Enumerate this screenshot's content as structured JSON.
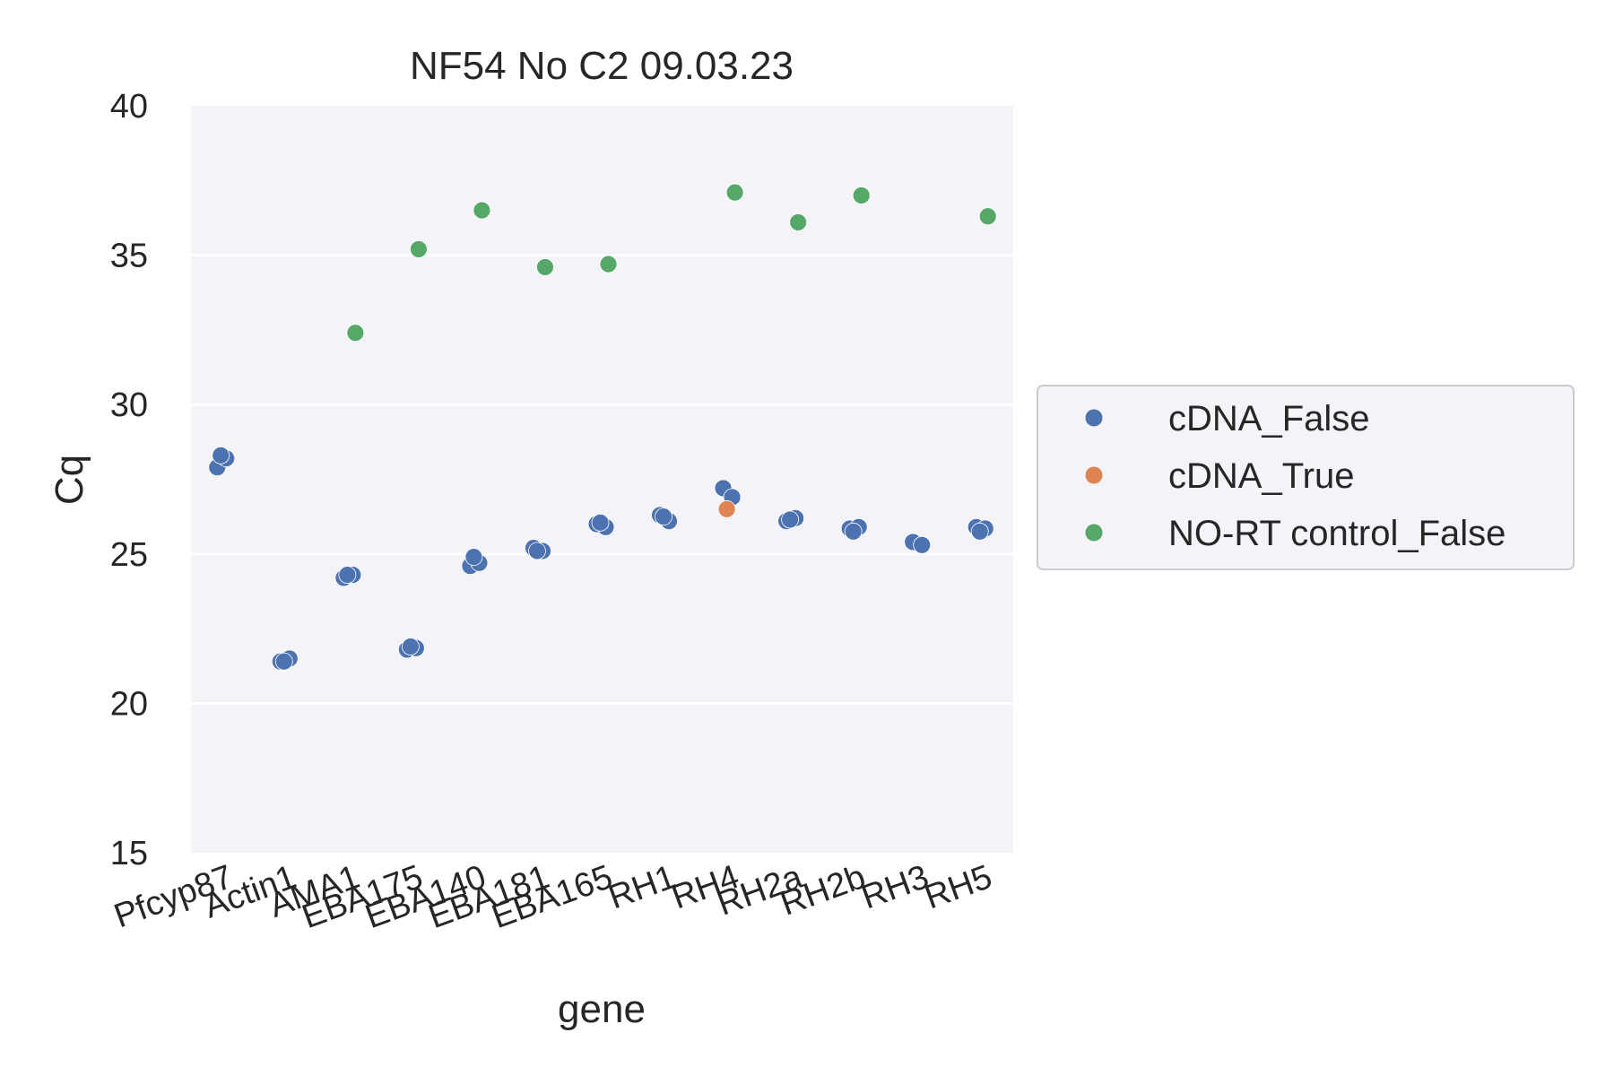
{
  "chart_data": {
    "type": "scatter",
    "title": "NF54 No C2 09.03.23",
    "xlabel": "gene",
    "ylabel": "Cq",
    "ylim": [
      15,
      40
    ],
    "yticks": [
      "15",
      "20",
      "25",
      "30",
      "35",
      "40"
    ],
    "categories": [
      "Pfcyp87",
      "Actin1",
      "AMA1",
      "EBA175",
      "EBA140",
      "EBA181",
      "EBA165",
      "RH1",
      "RH4",
      "RH2a",
      "RH2b",
      "RH3",
      "RH5"
    ],
    "grid": true,
    "legend_position": "right",
    "series": [
      {
        "name": "cDNA_False",
        "color": "#4c72b0",
        "points": [
          {
            "x": "Pfcyp87",
            "y": 27.9
          },
          {
            "x": "Pfcyp87",
            "y": 28.2
          },
          {
            "x": "Pfcyp87",
            "y": 28.3
          },
          {
            "x": "Actin1",
            "y": 21.4
          },
          {
            "x": "Actin1",
            "y": 21.5
          },
          {
            "x": "Actin1",
            "y": 21.4
          },
          {
            "x": "AMA1",
            "y": 24.2
          },
          {
            "x": "AMA1",
            "y": 24.3
          },
          {
            "x": "AMA1",
            "y": 24.3
          },
          {
            "x": "EBA175",
            "y": 21.8
          },
          {
            "x": "EBA175",
            "y": 21.85
          },
          {
            "x": "EBA175",
            "y": 21.9
          },
          {
            "x": "EBA140",
            "y": 24.6
          },
          {
            "x": "EBA140",
            "y": 24.7
          },
          {
            "x": "EBA140",
            "y": 24.9
          },
          {
            "x": "EBA181",
            "y": 25.2
          },
          {
            "x": "EBA181",
            "y": 25.1
          },
          {
            "x": "EBA181",
            "y": 25.1
          },
          {
            "x": "EBA165",
            "y": 26.0
          },
          {
            "x": "EBA165",
            "y": 25.9
          },
          {
            "x": "EBA165",
            "y": 26.05
          },
          {
            "x": "RH1",
            "y": 26.3
          },
          {
            "x": "RH1",
            "y": 26.1
          },
          {
            "x": "RH1",
            "y": 26.25
          },
          {
            "x": "RH4",
            "y": 27.2
          },
          {
            "x": "RH4",
            "y": 26.9
          },
          {
            "x": "RH2a",
            "y": 26.1
          },
          {
            "x": "RH2a",
            "y": 26.2
          },
          {
            "x": "RH2a",
            "y": 26.15
          },
          {
            "x": "RH2b",
            "y": 25.85
          },
          {
            "x": "RH2b",
            "y": 25.9
          },
          {
            "x": "RH2b",
            "y": 25.75
          },
          {
            "x": "RH3",
            "y": 25.4
          },
          {
            "x": "RH3",
            "y": 25.3
          },
          {
            "x": "RH5",
            "y": 25.9
          },
          {
            "x": "RH5",
            "y": 25.85
          },
          {
            "x": "RH5",
            "y": 25.75
          }
        ]
      },
      {
        "name": "cDNA_True",
        "color": "#dd8452",
        "points": [
          {
            "x": "RH4",
            "y": 26.5
          }
        ]
      },
      {
        "name": "NO-RT control_False",
        "color": "#55a868",
        "points": [
          {
            "x": "AMA1",
            "y": 32.4
          },
          {
            "x": "EBA175",
            "y": 35.2
          },
          {
            "x": "EBA140",
            "y": 36.5
          },
          {
            "x": "EBA181",
            "y": 34.6
          },
          {
            "x": "EBA165",
            "y": 34.7
          },
          {
            "x": "RH4",
            "y": 37.1
          },
          {
            "x": "RH2a",
            "y": 36.1
          },
          {
            "x": "RH2b",
            "y": 37.0
          },
          {
            "x": "RH5",
            "y": 36.3
          }
        ]
      }
    ]
  }
}
